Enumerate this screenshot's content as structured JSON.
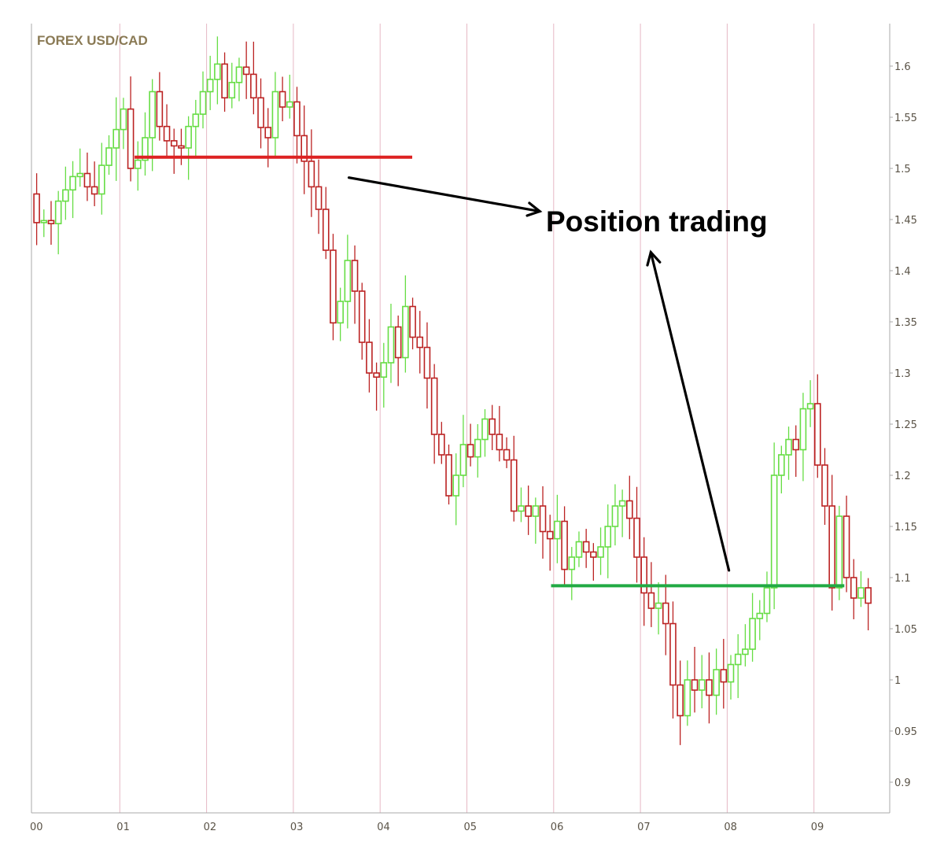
{
  "chart_data": {
    "type": "candlestick",
    "title": "FOREX USD/CAD",
    "xlabel": "",
    "ylabel": "",
    "x_tick_labels": [
      "00",
      "01",
      "02",
      "03",
      "04",
      "05",
      "06",
      "07",
      "08",
      "09"
    ],
    "y_ticks": [
      0.9,
      0.95,
      1,
      1.05,
      1.1,
      1.15,
      1.2,
      1.25,
      1.3,
      1.35,
      1.4,
      1.45,
      1.5,
      1.55,
      1.6
    ],
    "ylim": [
      0.87,
      1.63
    ],
    "xlim": [
      0,
      9.85
    ],
    "grid": "vertical lines at each year",
    "colors": {
      "up": "#66dd44",
      "down": "#bb2222",
      "title": "#8a7a55",
      "grid": "#e6b8c4",
      "axis": "#aaaaaa",
      "support": "#22aa44",
      "resistance": "#dd2222",
      "arrow": "#000000"
    },
    "monthly_close": [
      1.447,
      1.449,
      1.446,
      1.468,
      1.479,
      1.492,
      1.495,
      1.482,
      1.475,
      1.503,
      1.52,
      1.538,
      1.558,
      1.5,
      1.508,
      1.53,
      1.575,
      1.541,
      1.527,
      1.522,
      1.52,
      1.541,
      1.553,
      1.575,
      1.587,
      1.602,
      1.569,
      1.584,
      1.599,
      1.592,
      1.569,
      1.54,
      1.53,
      1.575,
      1.56,
      1.565,
      1.532,
      1.507,
      1.482,
      1.46,
      1.42,
      1.349,
      1.37,
      1.41,
      1.38,
      1.33,
      1.3,
      1.296,
      1.31,
      1.345,
      1.315,
      1.365,
      1.335,
      1.325,
      1.295,
      1.24,
      1.22,
      1.18,
      1.2,
      1.23,
      1.218,
      1.235,
      1.255,
      1.24,
      1.225,
      1.215,
      1.165,
      1.17,
      1.16,
      1.17,
      1.145,
      1.138,
      1.155,
      1.108,
      1.12,
      1.135,
      1.125,
      1.12,
      1.13,
      1.15,
      1.17,
      1.175,
      1.158,
      1.12,
      1.085,
      1.07,
      1.075,
      1.055,
      0.995,
      0.965,
      1.0,
      0.99,
      1.0,
      0.985,
      1.01,
      0.998,
      1.015,
      1.025,
      1.03,
      1.06,
      1.065,
      1.09,
      1.2,
      1.22,
      1.235,
      1.225,
      1.265,
      1.27,
      1.21,
      1.17,
      1.09,
      1.16,
      1.1,
      1.08,
      1.09,
      1.075
    ],
    "levels": [
      {
        "name": "resistance",
        "y": 1.511,
        "x_start": 1.17,
        "x_end": 4.37
      },
      {
        "name": "support",
        "y": 1.092,
        "x_start": 5.97,
        "x_end": 9.35
      }
    ],
    "annotations": [
      {
        "text": "Position trading",
        "x": 6.0,
        "y": 1.46
      }
    ],
    "arrows": [
      {
        "from_x": 3.64,
        "from_y": 1.491,
        "to_x": 5.84,
        "to_y": 1.458
      },
      {
        "from_x": 8.02,
        "from_y": 1.107,
        "to_x": 7.12,
        "to_y": 1.418
      }
    ]
  }
}
